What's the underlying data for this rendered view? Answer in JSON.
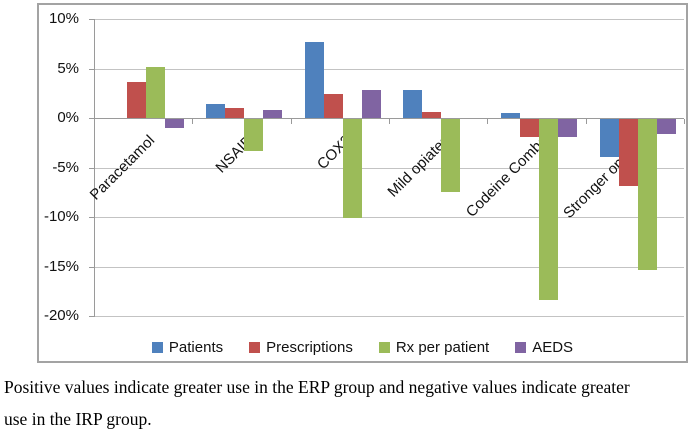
{
  "chart_data": {
    "type": "bar",
    "title": "",
    "xlabel": "",
    "ylabel": "",
    "categories": [
      "Paracetamol",
      "NSAID",
      "COX2",
      "Mild opiates",
      "Codeine Combo",
      "Stronger opiates"
    ],
    "series": [
      {
        "name": "Patients",
        "color": "#4F81BD",
        "values": [
          0,
          1.4,
          7.7,
          2.8,
          0.5,
          -3.8
        ]
      },
      {
        "name": "Prescriptions",
        "color": "#C0504D",
        "values": [
          3.6,
          1.0,
          2.4,
          0.6,
          -1.8,
          -6.8
        ]
      },
      {
        "name": "Rx per patient",
        "color": "#9BBB59",
        "values": [
          5.2,
          -3.2,
          -10.0,
          -7.4,
          -18.3,
          -15.3
        ]
      },
      {
        "name": "AEDS",
        "color": "#8064A2",
        "values": [
          -0.9,
          0.8,
          2.8,
          0,
          -1.8,
          -1.5
        ]
      }
    ],
    "ylim": [
      -20,
      10
    ],
    "yticks": [
      {
        "value": 10,
        "label": "10%"
      },
      {
        "value": 5,
        "label": "5%"
      },
      {
        "value": 0,
        "label": "0%"
      },
      {
        "value": -5,
        "label": "-5%"
      },
      {
        "value": -10,
        "label": "-10%"
      },
      {
        "value": -15,
        "label": "-15%"
      },
      {
        "value": -20,
        "label": "-20%"
      }
    ],
    "grid": true,
    "legend_position": "bottom"
  },
  "caption": {
    "lines": [
      "Positive values indicate greater use in the ERP group and negative values indicate greater",
      "use in the IRP group."
    ]
  }
}
